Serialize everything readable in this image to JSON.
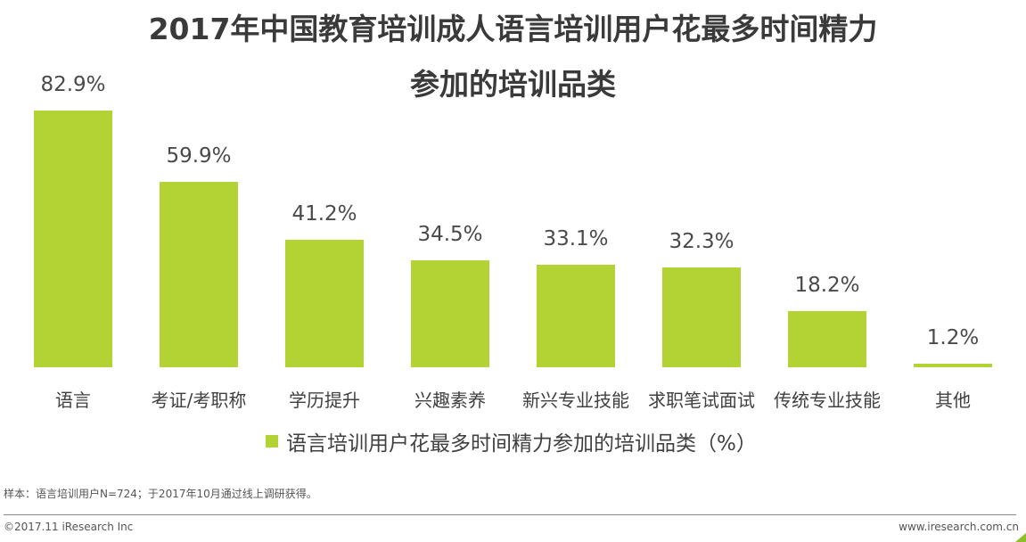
{
  "title": {
    "line1": "2017年中国教育培训成人语言培训用户花最多时间精力",
    "line2": "参加的培训品类"
  },
  "bars": [
    {
      "label": "语言",
      "value_label": "82.9%"
    },
    {
      "label": "考证/考职称",
      "value_label": "59.9%"
    },
    {
      "label": "学历提升",
      "value_label": "41.2%"
    },
    {
      "label": "兴趣素养",
      "value_label": "34.5%"
    },
    {
      "label": "新兴专业技能",
      "value_label": "33.1%"
    },
    {
      "label": "求职笔试面试",
      "value_label": "32.3%"
    },
    {
      "label": "传统专业技能",
      "value_label": "18.2%"
    },
    {
      "label": "其他",
      "value_label": "1.2%"
    }
  ],
  "legend": {
    "label": "语言培训用户花最多时间精力参加的培训品类（%）",
    "color": "#b3d234"
  },
  "footer": {
    "note": "样本：语言培训用户N=724；于2017年10月通过线上调研获得。",
    "copyright": "©2017.11 iResearch Inc",
    "website": "www.iresearch.com.cn"
  },
  "colors": {
    "bar": "#b3d234",
    "text": "#404040",
    "divider": "#8a8a8a"
  },
  "chart_data": {
    "type": "bar",
    "title": "2017年中国教育培训成人语言培训用户花最多时间精力参加的培训品类",
    "categories": [
      "语言",
      "考证/考职称",
      "学历提升",
      "兴趣素养",
      "新兴专业技能",
      "求职笔试面试",
      "传统专业技能",
      "其他"
    ],
    "series": [
      {
        "name": "语言培训用户花最多时间精力参加的培训品类（%）",
        "values": [
          82.9,
          59.9,
          41.2,
          34.5,
          33.1,
          32.3,
          18.2,
          1.2
        ]
      }
    ],
    "xlabel": "",
    "ylabel": "",
    "ylim": [
      0,
      100
    ],
    "grid": false,
    "legend_position": "bottom",
    "data_labels": true
  }
}
